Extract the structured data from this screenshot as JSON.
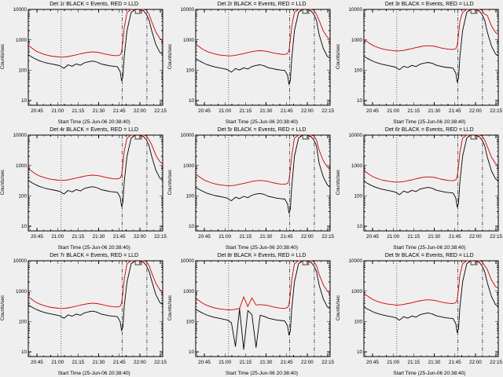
{
  "figure": {
    "background": "#efefef"
  },
  "chart_data": {
    "type": "line",
    "yscale": "log",
    "xlabel": "Start Time (25-Jun-06 20:38:40)",
    "ylabel": "Counts/sec",
    "legend_note": "BLACK = Events, RED = LLD",
    "xlim": [
      0,
      98
    ],
    "ylim": [
      7,
      10000
    ],
    "x_unit": "minutes since 20:38:40",
    "xticks": {
      "values": [
        6.33,
        21.33,
        36.33,
        51.33,
        66.33,
        81.33,
        96.33
      ],
      "labels": [
        "20:45",
        "21:00",
        "21:15",
        "21:30",
        "21:45",
        "22:00",
        "22:15"
      ]
    },
    "yticks": {
      "values": [
        10,
        100,
        1000,
        10000
      ],
      "labels": [
        "10",
        "100",
        "1000",
        "10000"
      ]
    },
    "vlines": [
      {
        "x": 24,
        "style": "dotted"
      },
      {
        "x": 68.5,
        "style": "dashdot"
      },
      {
        "x": 86.5,
        "style": "dashdot"
      }
    ],
    "flag_marker": {
      "x0": 78,
      "x1": 82.5
    },
    "series_colors": {
      "events": "#000000",
      "lld": "#cc0000"
    },
    "x": [
      0,
      2,
      4,
      6,
      8,
      11,
      14,
      17,
      20,
      23,
      26,
      29,
      32,
      35,
      38,
      41,
      44,
      47,
      50,
      53,
      56,
      59,
      62,
      65,
      67,
      68,
      69,
      70,
      72,
      75,
      78,
      81,
      84,
      86,
      88,
      90,
      93,
      96,
      98
    ],
    "panels": [
      {
        "title": "Det 1r BLACK = Events, RED = LLD",
        "lld": [
          650,
          560,
          480,
          420,
          380,
          340,
          310,
          290,
          280,
          270,
          270,
          280,
          300,
          320,
          345,
          370,
          390,
          400,
          390,
          370,
          340,
          320,
          305,
          300,
          320,
          400,
          900,
          2500,
          8000,
          10000,
          10000,
          10000,
          10000,
          9500,
          7000,
          4000,
          1800,
          1100,
          950
        ],
        "events": [
          320,
          280,
          250,
          225,
          205,
          185,
          170,
          160,
          150,
          140,
          115,
          150,
          135,
          160,
          145,
          175,
          190,
          200,
          185,
          160,
          150,
          140,
          135,
          130,
          90,
          45,
          60,
          300,
          2000,
          8000,
          10000,
          10000,
          9000,
          7000,
          4500,
          2000,
          700,
          380,
          330
        ]
      },
      {
        "title": "Det 2r BLACK = Events, RED = LLD",
        "lld": [
          715,
          616,
          528,
          462,
          418,
          374,
          341,
          319,
          308,
          297,
          297,
          308,
          330,
          352,
          380,
          407,
          429,
          440,
          429,
          407,
          374,
          352,
          336,
          330,
          352,
          440,
          990,
          2750,
          8000,
          10000,
          10000,
          10000,
          10000,
          9500,
          7000,
          4400,
          1980,
          1210,
          1045
        ],
        "events": [
          240,
          210,
          188,
          169,
          154,
          139,
          128,
          120,
          113,
          105,
          86,
          113,
          101,
          120,
          109,
          131,
          143,
          150,
          139,
          120,
          113,
          105,
          101,
          98,
          68,
          34,
          45,
          225,
          2000,
          8000,
          10000,
          10000,
          9000,
          7000,
          4500,
          1500,
          525,
          285,
          248
        ]
      },
      {
        "title": "Det 3r BLACK = Events, RED = LLD",
        "lld": [
          1040,
          896,
          768,
          672,
          608,
          544,
          496,
          464,
          448,
          432,
          432,
          448,
          480,
          512,
          552,
          592,
          624,
          640,
          624,
          592,
          544,
          512,
          488,
          480,
          512,
          640,
          1440,
          4000,
          8000,
          10000,
          10000,
          10000,
          10000,
          9500,
          7000,
          6400,
          2880,
          1760,
          1520
        ],
        "events": [
          288,
          252,
          225,
          203,
          185,
          167,
          153,
          144,
          135,
          126,
          104,
          135,
          122,
          144,
          131,
          158,
          171,
          180,
          167,
          144,
          135,
          126,
          122,
          117,
          81,
          41,
          54,
          270,
          2000,
          8000,
          10000,
          10000,
          9000,
          7000,
          4500,
          1800,
          630,
          342,
          297
        ]
      },
      {
        "title": "Det 4r BLACK = Events, RED = LLD",
        "lld": [
          780,
          672,
          576,
          504,
          456,
          408,
          372,
          348,
          336,
          324,
          324,
          336,
          360,
          384,
          414,
          444,
          468,
          480,
          468,
          444,
          408,
          384,
          366,
          360,
          384,
          480,
          1080,
          3000,
          8000,
          10000,
          10000,
          10000,
          10000,
          9500,
          7000,
          4800,
          2160,
          1320,
          1140
        ],
        "events": [
          320,
          280,
          250,
          225,
          205,
          185,
          170,
          160,
          150,
          140,
          115,
          150,
          135,
          160,
          145,
          175,
          190,
          200,
          185,
          160,
          150,
          140,
          135,
          130,
          90,
          45,
          60,
          300,
          2000,
          8000,
          10000,
          10000,
          9000,
          7000,
          4500,
          2000,
          700,
          380,
          330
        ]
      },
      {
        "title": "Det 5r BLACK = Events, RED = LLD",
        "lld": [
          520,
          448,
          384,
          336,
          304,
          272,
          248,
          232,
          224,
          216,
          216,
          224,
          240,
          256,
          276,
          296,
          312,
          320,
          312,
          296,
          272,
          256,
          244,
          240,
          256,
          320,
          720,
          2000,
          8000,
          10000,
          10000,
          10000,
          10000,
          9500,
          7000,
          3200,
          1440,
          880,
          760
        ],
        "events": [
          192,
          168,
          150,
          135,
          123,
          111,
          102,
          96,
          90,
          84,
          69,
          90,
          81,
          96,
          87,
          105,
          114,
          120,
          111,
          96,
          90,
          84,
          81,
          78,
          54,
          27,
          36,
          180,
          2000,
          8000,
          10000,
          10000,
          9000,
          7000,
          4500,
          1200,
          420,
          228,
          198
        ]
      },
      {
        "title": "Det 6r BLACK = Events, RED = LLD",
        "lld": [
          683,
          588,
          504,
          441,
          399,
          357,
          326,
          305,
          294,
          284,
          284,
          294,
          315,
          336,
          362,
          389,
          410,
          420,
          410,
          389,
          357,
          336,
          320,
          315,
          336,
          420,
          945,
          2625,
          8000,
          10000,
          10000,
          10000,
          10000,
          9500,
          7000,
          4200,
          1890,
          1155,
          998
        ],
        "events": [
          304,
          266,
          238,
          214,
          195,
          176,
          162,
          152,
          143,
          133,
          109,
          143,
          128,
          152,
          138,
          166,
          181,
          190,
          176,
          152,
          143,
          133,
          128,
          124,
          86,
          43,
          57,
          285,
          2000,
          8000,
          10000,
          10000,
          9000,
          7000,
          4500,
          1900,
          665,
          361,
          314
        ]
      },
      {
        "title": "Det 7r BLACK = Events, RED = LLD",
        "lld": [
          650,
          560,
          480,
          420,
          380,
          340,
          310,
          290,
          280,
          270,
          270,
          280,
          300,
          320,
          345,
          370,
          390,
          400,
          390,
          370,
          340,
          320,
          305,
          300,
          320,
          400,
          900,
          2500,
          8000,
          10000,
          10000,
          10000,
          10000,
          9500,
          7000,
          4000,
          1800,
          1100,
          950
        ],
        "events": [
          352,
          308,
          275,
          248,
          226,
          204,
          187,
          176,
          165,
          154,
          127,
          165,
          149,
          176,
          160,
          193,
          209,
          220,
          204,
          176,
          165,
          154,
          149,
          143,
          99,
          50,
          66,
          330,
          2000,
          8000,
          10000,
          10000,
          9000,
          7000,
          4500,
          2200,
          770,
          418,
          363
        ]
      },
      {
        "title": "Det 8r BLACK = Events, RED = LLD",
        "lld": [
          585,
          504,
          432,
          378,
          342,
          306,
          279,
          261,
          252,
          243,
          243,
          252,
          270,
          650,
          311,
          600,
          351,
          360,
          351,
          333,
          306,
          288,
          275,
          270,
          288,
          360,
          810,
          2250,
          8000,
          10000,
          10000,
          10000,
          10000,
          9500,
          7000,
          3600,
          1620,
          990,
          855
        ],
        "events": [
          256,
          224,
          200,
          180,
          164,
          148,
          136,
          128,
          120,
          112,
          92,
          15,
          260,
          12,
          230,
          170,
          14,
          160,
          148,
          128,
          120,
          112,
          108,
          104,
          72,
          36,
          48,
          240,
          2000,
          8000,
          10000,
          10000,
          9000,
          7000,
          4500,
          1600,
          560,
          304,
          264
        ]
      },
      {
        "title": "Det 9r BLACK = Events, RED = LLD",
        "lld": [
          845,
          728,
          624,
          546,
          494,
          442,
          403,
          377,
          364,
          351,
          351,
          364,
          390,
          416,
          449,
          481,
          507,
          520,
          507,
          481,
          442,
          416,
          397,
          390,
          416,
          520,
          1170,
          3250,
          8000,
          10000,
          10000,
          10000,
          10000,
          9500,
          7000,
          5200,
          2340,
          1430,
          1235
        ],
        "events": [
          305,
          265,
          240,
          215,
          195,
          178,
          163,
          152,
          144,
          134,
          110,
          144,
          129,
          152,
          139,
          167,
          182,
          191,
          177,
          153,
          144,
          134,
          129,
          125,
          86,
          43,
          57,
          286,
          2000,
          8000,
          10000,
          10000,
          9000,
          7000,
          4500,
          1900,
          665,
          361,
          314
        ]
      }
    ]
  }
}
